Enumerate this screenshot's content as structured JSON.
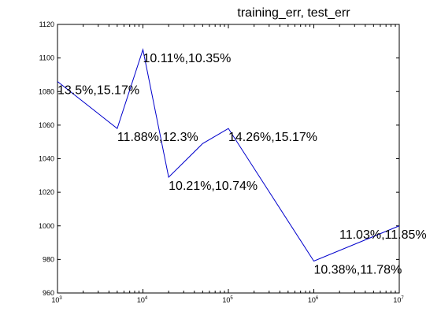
{
  "chart_data": {
    "type": "line",
    "title": "training_err, test_err",
    "xlabel": "",
    "ylabel": "",
    "xscale": "log",
    "xlim": [
      1000,
      10000000
    ],
    "ylim": [
      960,
      1120
    ],
    "grid": false,
    "legend": "none",
    "line_color": "#0000cc",
    "x_ticks": [
      {
        "base": "10",
        "exp": "3",
        "value": 1000
      },
      {
        "base": "10",
        "exp": "4",
        "value": 10000
      },
      {
        "base": "10",
        "exp": "5",
        "value": 100000
      },
      {
        "base": "10",
        "exp": "6",
        "value": 1000000
      },
      {
        "base": "10",
        "exp": "7",
        "value": 10000000
      }
    ],
    "y_ticks": [
      960,
      980,
      1000,
      1020,
      1040,
      1060,
      1080,
      1100,
      1120
    ],
    "series": [
      {
        "x": [
          1000,
          5000,
          10000,
          20000,
          50000,
          100000,
          1000000,
          10000000
        ],
        "y": [
          1086,
          1058,
          1105,
          1029,
          1049,
          1058,
          979,
          1000
        ]
      }
    ],
    "annotations": [
      {
        "text": "13.5%,15.17%",
        "x": 1000,
        "y": 1086
      },
      {
        "text": "11.88%,12.3%",
        "x": 5000,
        "y": 1058
      },
      {
        "text": "10.11%,10.35%",
        "x": 10000,
        "y": 1105
      },
      {
        "text": "10.21%,10.74%",
        "x": 20000,
        "y": 1029
      },
      {
        "text": "14.26%,15.17%",
        "x": 100000,
        "y": 1058
      },
      {
        "text": "10.38%,11.78%",
        "x": 1000000,
        "y": 979
      },
      {
        "text": "11.03%,11.85%",
        "x": 10000000,
        "y": 1000
      }
    ]
  }
}
